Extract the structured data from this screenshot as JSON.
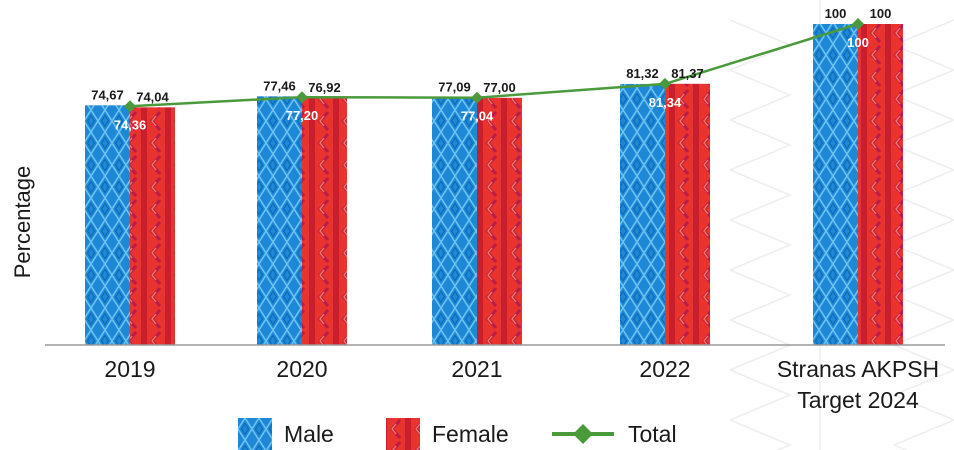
{
  "chart_data": {
    "type": "bar",
    "ylabel": "Percentage",
    "categories": [
      [
        "2019"
      ],
      [
        "2020"
      ],
      [
        "2021"
      ],
      [
        "2022"
      ],
      [
        "Stranas AKPSH",
        "Target 2024"
      ]
    ],
    "ylim": [
      0,
      100
    ],
    "series": [
      {
        "name": "Male",
        "kind": "bar",
        "color": "#1e88d6",
        "values": [
          74.67,
          77.46,
          77.09,
          81.32,
          100
        ],
        "labels": [
          "74,67",
          "77,46",
          "77,09",
          "81,32",
          "100"
        ]
      },
      {
        "name": "Female",
        "kind": "bar",
        "color": "#e8332f",
        "values": [
          74.04,
          76.92,
          77.0,
          81.37,
          100
        ],
        "labels": [
          "74,04",
          "76,92",
          "77,00",
          "81,37",
          "100"
        ]
      },
      {
        "name": "Total",
        "kind": "line",
        "color": "#4a9a3c",
        "values": [
          74.36,
          77.2,
          77.04,
          81.34,
          100
        ],
        "labels": [
          "74,36",
          "77,20",
          "77,04",
          "81,34",
          "100"
        ]
      }
    ],
    "legend_position": "bottom",
    "grid": false
  }
}
